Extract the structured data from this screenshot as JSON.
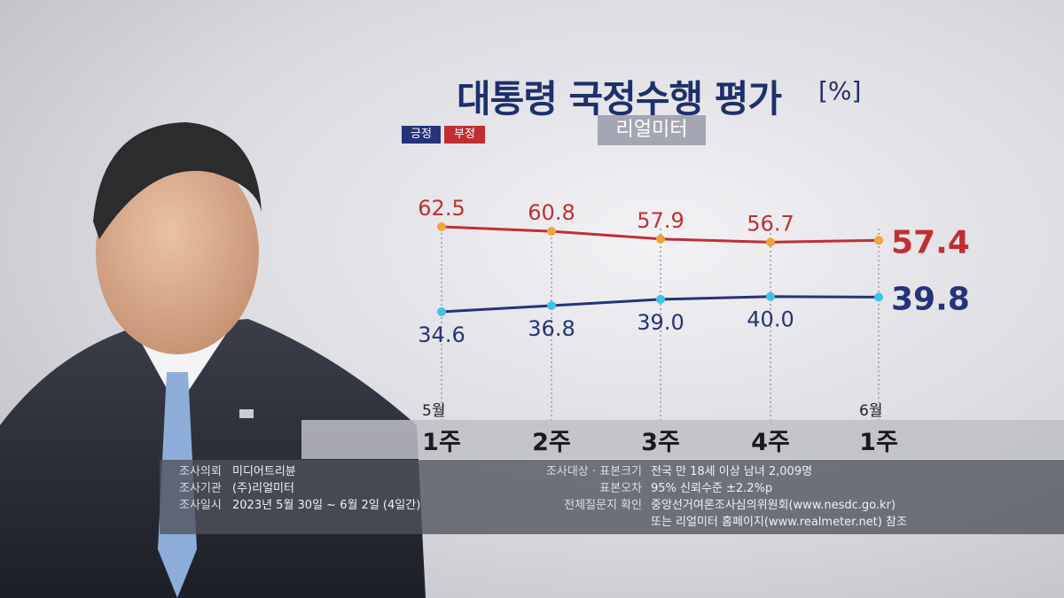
{
  "title": "대통령 국정수행 평가",
  "title_unit": "[%]",
  "subtitle": "리얼미터",
  "legend": {
    "positive": "긍정",
    "negative": "부정"
  },
  "colors": {
    "positive": "#27327a",
    "negative": "#c02f34",
    "positive_marker": "#3fc3e6",
    "negative_marker": "#f2a33a"
  },
  "chart_data": {
    "type": "line",
    "title": "대통령 국정수행 평가",
    "categories": [
      "1주",
      "2주",
      "3주",
      "4주",
      "1주"
    ],
    "month_labels": [
      "5월",
      "",
      "",
      "",
      "6월"
    ],
    "series": [
      {
        "name": "부정",
        "values": [
          62.5,
          60.8,
          57.9,
          56.7,
          57.4
        ],
        "labels": [
          "62.5",
          "60.8",
          "57.9",
          "56.7",
          "57.4"
        ]
      },
      {
        "name": "긍정",
        "values": [
          34.6,
          36.8,
          39.0,
          40.0,
          39.8
        ],
        "labels": [
          "34.6",
          "36.8",
          "39.0",
          "40.0",
          "39.8"
        ]
      }
    ],
    "ylim": [
      30,
      66
    ],
    "grid": "vertical dotted",
    "legend": "top-left"
  },
  "info": {
    "left": [
      {
        "label": "조사의뢰",
        "value": "미디어트리뷴"
      },
      {
        "label": "조사기관",
        "value": "(주)리얼미터"
      },
      {
        "label": "조사일시",
        "value": "2023년 5월 30일 ~ 6월 2일 (4일간)"
      }
    ],
    "right": [
      {
        "label": "조사대상 · 표본크기",
        "value": "전국 만 18세 이상 남녀 2,009명"
      },
      {
        "label": "표본오차",
        "value": "95% 신뢰수준 ±2.2%p"
      },
      {
        "label": "전체질문지 확인",
        "value": "중앙선거여론조사심의위원회(www.nesdc.go.kr)"
      },
      {
        "label": "",
        "value": "또는 리얼미터 홈페이지(www.realmeter.net) 참조"
      }
    ]
  }
}
